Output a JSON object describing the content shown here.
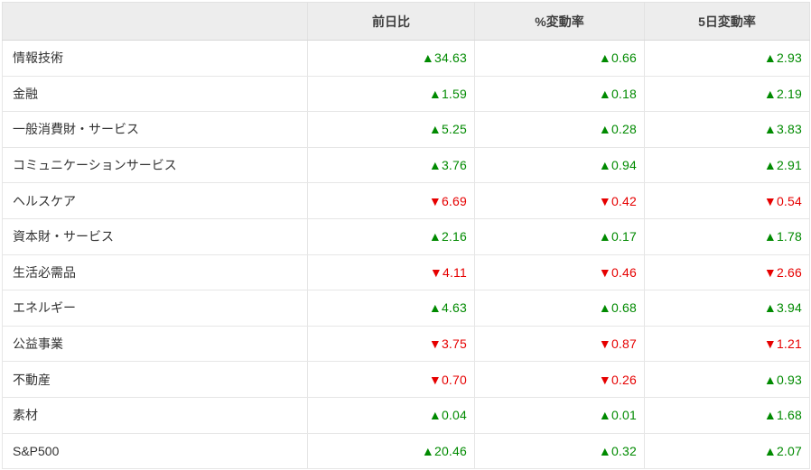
{
  "colors": {
    "up": "#008a00",
    "down": "#e60000",
    "header_bg": "#ededed",
    "header_text": "#404040",
    "label_text": "#333333",
    "border": "#e6e6e6"
  },
  "icons": {
    "up": "up-triangle-icon",
    "down": "down-triangle-icon"
  },
  "table": {
    "headers": [
      "",
      "前日比",
      "%変動率",
      "5日変動率"
    ],
    "rows": [
      {
        "label": "情報技術",
        "cells": [
          {
            "direction": "up",
            "text": "▲34.63"
          },
          {
            "direction": "up",
            "text": "▲0.66"
          },
          {
            "direction": "up",
            "text": "▲2.93"
          }
        ]
      },
      {
        "label": "金融",
        "cells": [
          {
            "direction": "up",
            "text": "▲1.59"
          },
          {
            "direction": "up",
            "text": "▲0.18"
          },
          {
            "direction": "up",
            "text": "▲2.19"
          }
        ]
      },
      {
        "label": "一般消費財・サービス",
        "cells": [
          {
            "direction": "up",
            "text": "▲5.25"
          },
          {
            "direction": "up",
            "text": "▲0.28"
          },
          {
            "direction": "up",
            "text": "▲3.83"
          }
        ]
      },
      {
        "label": "コミュニケーションサービス",
        "cells": [
          {
            "direction": "up",
            "text": "▲3.76"
          },
          {
            "direction": "up",
            "text": "▲0.94"
          },
          {
            "direction": "up",
            "text": "▲2.91"
          }
        ]
      },
      {
        "label": "ヘルスケア",
        "cells": [
          {
            "direction": "down",
            "text": "▼6.69"
          },
          {
            "direction": "down",
            "text": "▼0.42"
          },
          {
            "direction": "down",
            "text": "▼0.54"
          }
        ]
      },
      {
        "label": "資本財・サービス",
        "cells": [
          {
            "direction": "up",
            "text": "▲2.16"
          },
          {
            "direction": "up",
            "text": "▲0.17"
          },
          {
            "direction": "up",
            "text": "▲1.78"
          }
        ]
      },
      {
        "label": "生活必需品",
        "cells": [
          {
            "direction": "down",
            "text": "▼4.11"
          },
          {
            "direction": "down",
            "text": "▼0.46"
          },
          {
            "direction": "down",
            "text": "▼2.66"
          }
        ]
      },
      {
        "label": "エネルギー",
        "cells": [
          {
            "direction": "up",
            "text": "▲4.63"
          },
          {
            "direction": "up",
            "text": "▲0.68"
          },
          {
            "direction": "up",
            "text": "▲3.94"
          }
        ]
      },
      {
        "label": "公益事業",
        "cells": [
          {
            "direction": "down",
            "text": "▼3.75"
          },
          {
            "direction": "down",
            "text": "▼0.87"
          },
          {
            "direction": "down",
            "text": "▼1.21"
          }
        ]
      },
      {
        "label": "不動産",
        "cells": [
          {
            "direction": "down",
            "text": "▼0.70"
          },
          {
            "direction": "down",
            "text": "▼0.26"
          },
          {
            "direction": "up",
            "text": "▲0.93"
          }
        ]
      },
      {
        "label": "素材",
        "cells": [
          {
            "direction": "up",
            "text": "▲0.04"
          },
          {
            "direction": "up",
            "text": "▲0.01"
          },
          {
            "direction": "up",
            "text": "▲1.68"
          }
        ]
      },
      {
        "label": "S&P500",
        "cells": [
          {
            "direction": "up",
            "text": "▲20.46"
          },
          {
            "direction": "up",
            "text": "▲0.32"
          },
          {
            "direction": "up",
            "text": "▲2.07"
          }
        ]
      }
    ]
  }
}
